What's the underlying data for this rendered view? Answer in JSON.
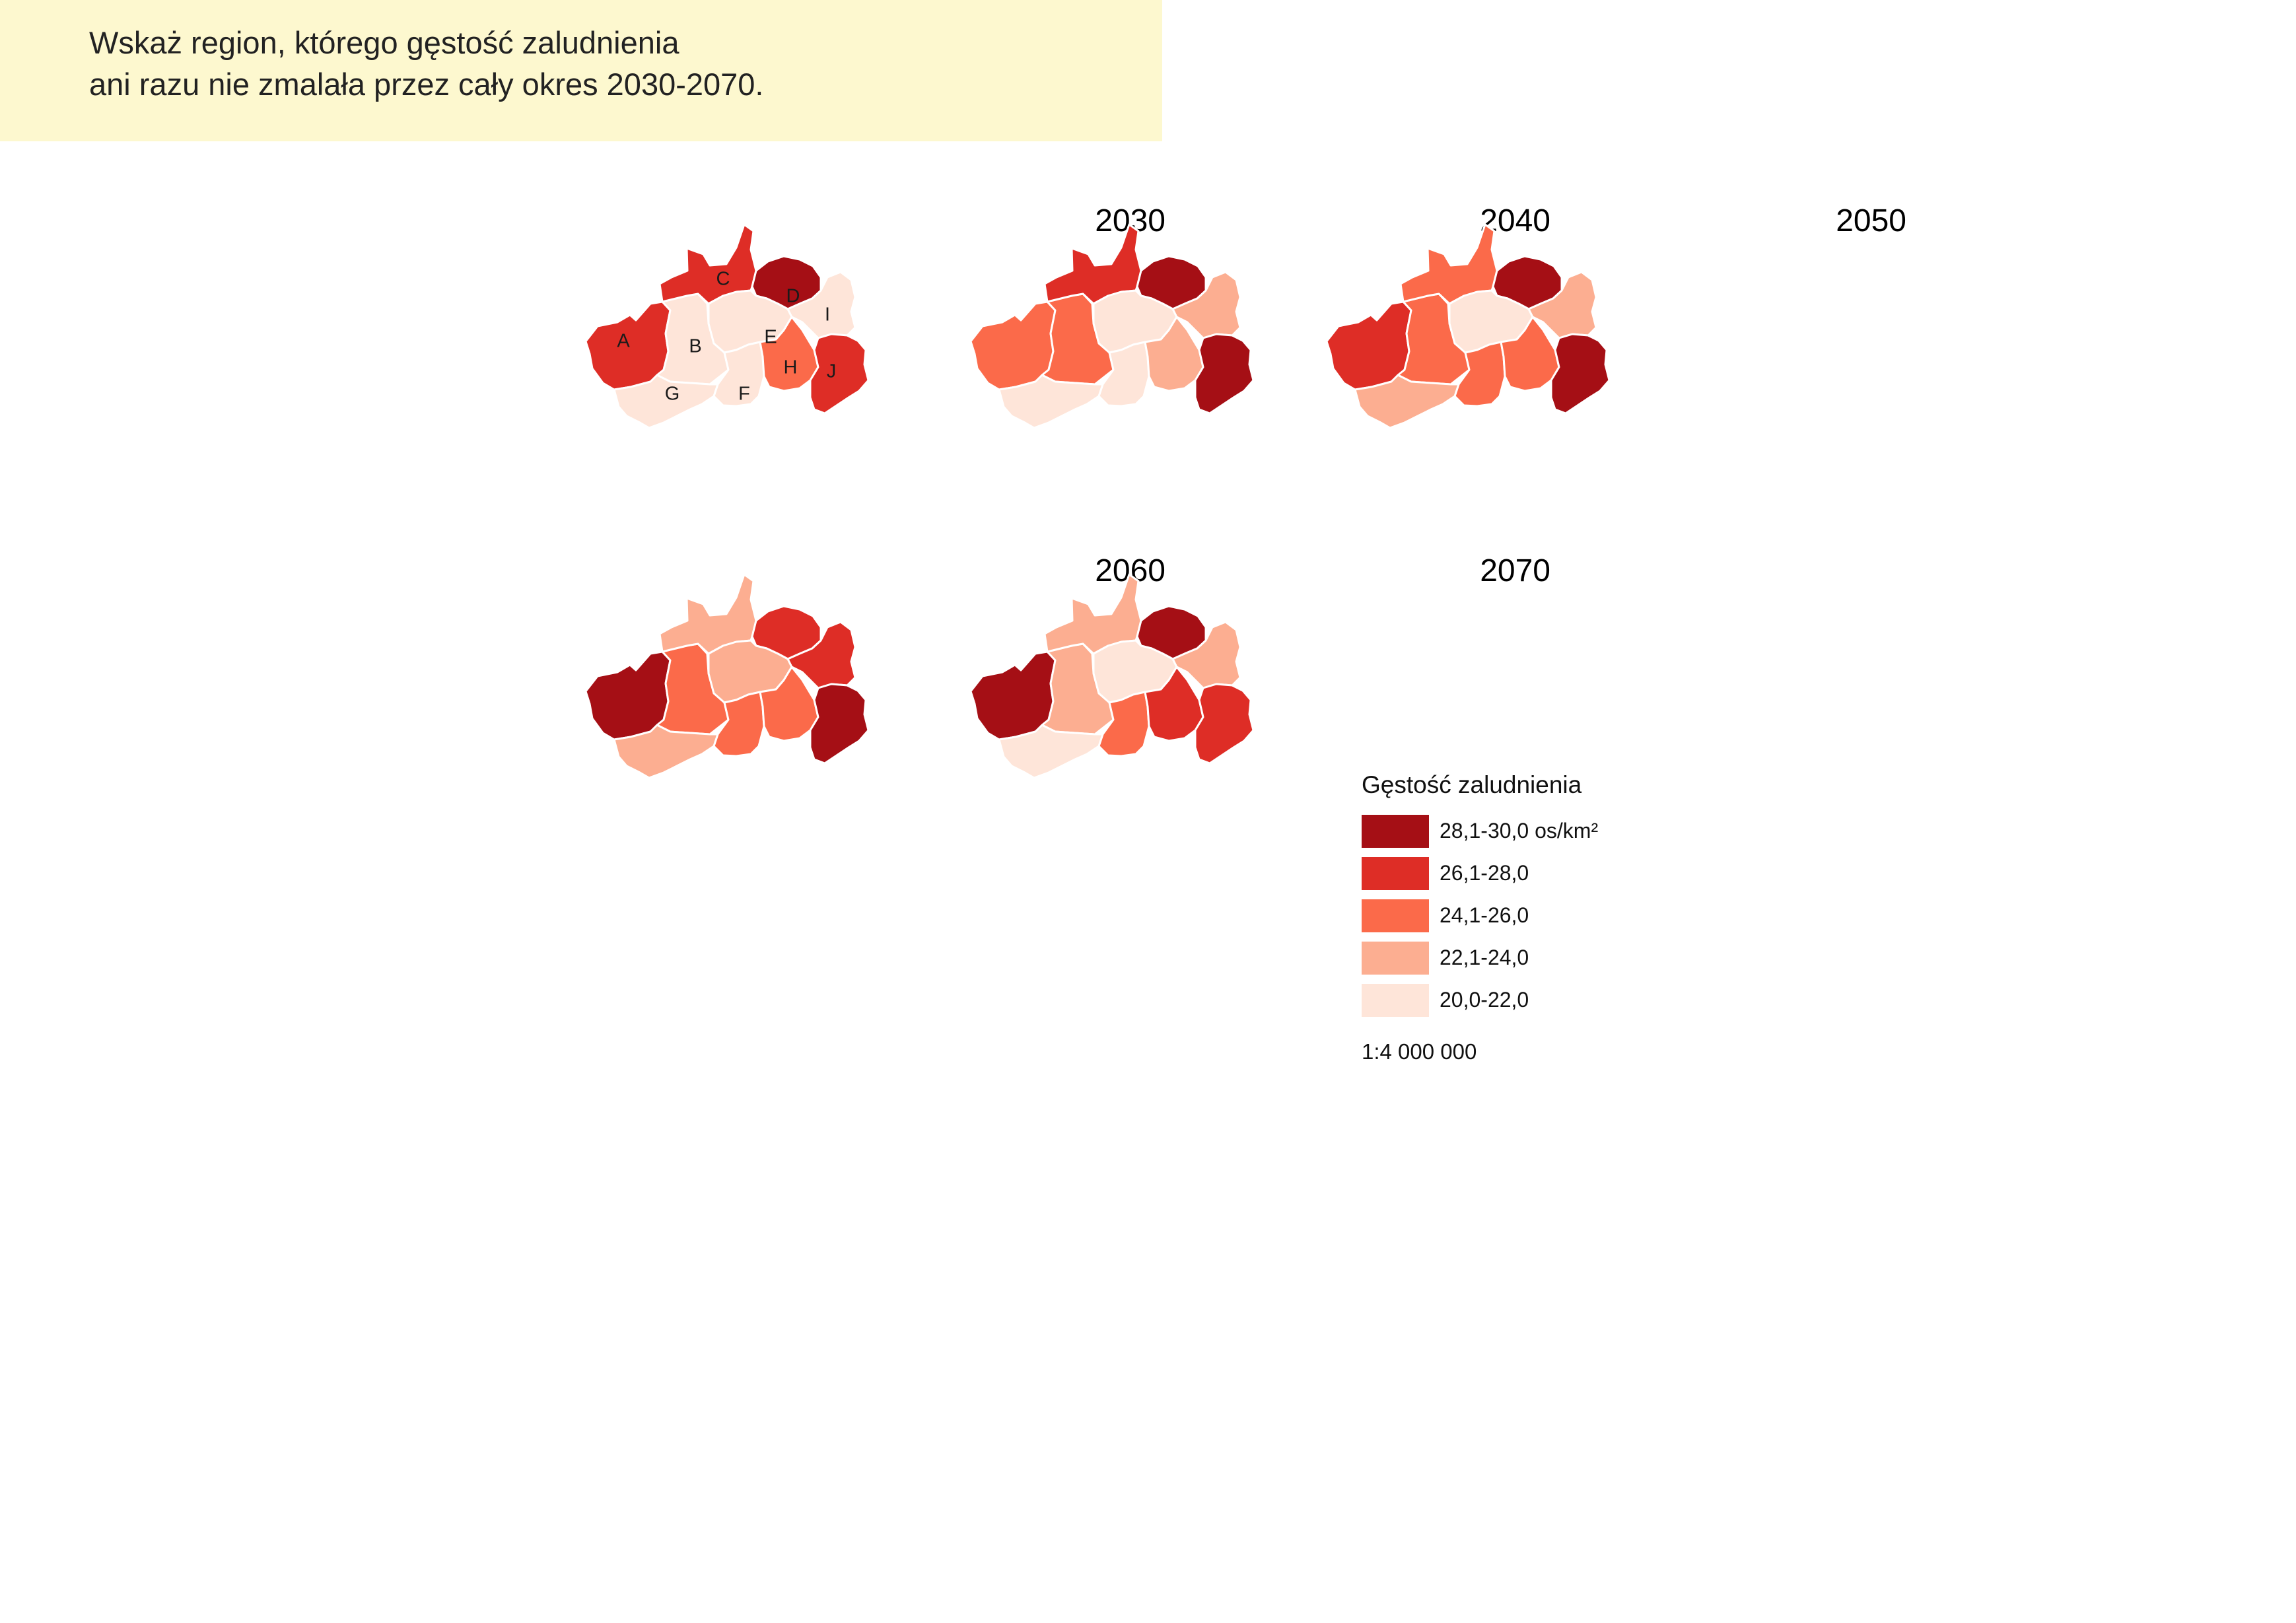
{
  "question": {
    "line1": "Wskaż region, którego gęstość zaludnienia",
    "line2": "ani razu nie zmalała przez cały okres 2030-2070."
  },
  "legend": {
    "title": "Gęstość zaludnienia",
    "classes": [
      {
        "label": "28,1-30,0 os/km²",
        "color": "#a50f15"
      },
      {
        "label": "26,1-28,0",
        "color": "#de2d26"
      },
      {
        "label": "24,1-26,0",
        "color": "#fb6a4a"
      },
      {
        "label": "22,1-24,0",
        "color": "#fcae91"
      },
      {
        "label": "20,0-22,0",
        "color": "#fee5d9"
      }
    ],
    "scale": "1:4 000 000"
  },
  "region_letters": [
    "A",
    "B",
    "C",
    "D",
    "E",
    "F",
    "G",
    "H",
    "I",
    "J"
  ],
  "maps": [
    {
      "year": "2030",
      "show_letters": true,
      "classes": {
        "A": 1,
        "B": 4,
        "C": 1,
        "D": 0,
        "E": 4,
        "F": 4,
        "G": 4,
        "H": 2,
        "I": 4,
        "J": 1
      }
    },
    {
      "year": "2040",
      "show_letters": false,
      "classes": {
        "A": 2,
        "B": 2,
        "C": 1,
        "D": 0,
        "E": 4,
        "F": 4,
        "G": 4,
        "H": 3,
        "I": 3,
        "J": 0
      }
    },
    {
      "year": "2050",
      "show_letters": false,
      "classes": {
        "A": 1,
        "B": 2,
        "C": 2,
        "D": 0,
        "E": 4,
        "F": 2,
        "G": 3,
        "H": 2,
        "I": 3,
        "J": 0
      }
    },
    {
      "year": "2060",
      "show_letters": false,
      "classes": {
        "A": 0,
        "B": 2,
        "C": 3,
        "D": 1,
        "E": 3,
        "F": 2,
        "G": 3,
        "H": 2,
        "I": 1,
        "J": 0
      }
    },
    {
      "year": "2070",
      "show_letters": false,
      "classes": {
        "A": 0,
        "B": 3,
        "C": 3,
        "D": 0,
        "E": 4,
        "F": 2,
        "G": 4,
        "H": 1,
        "I": 3,
        "J": 1
      }
    }
  ]
}
